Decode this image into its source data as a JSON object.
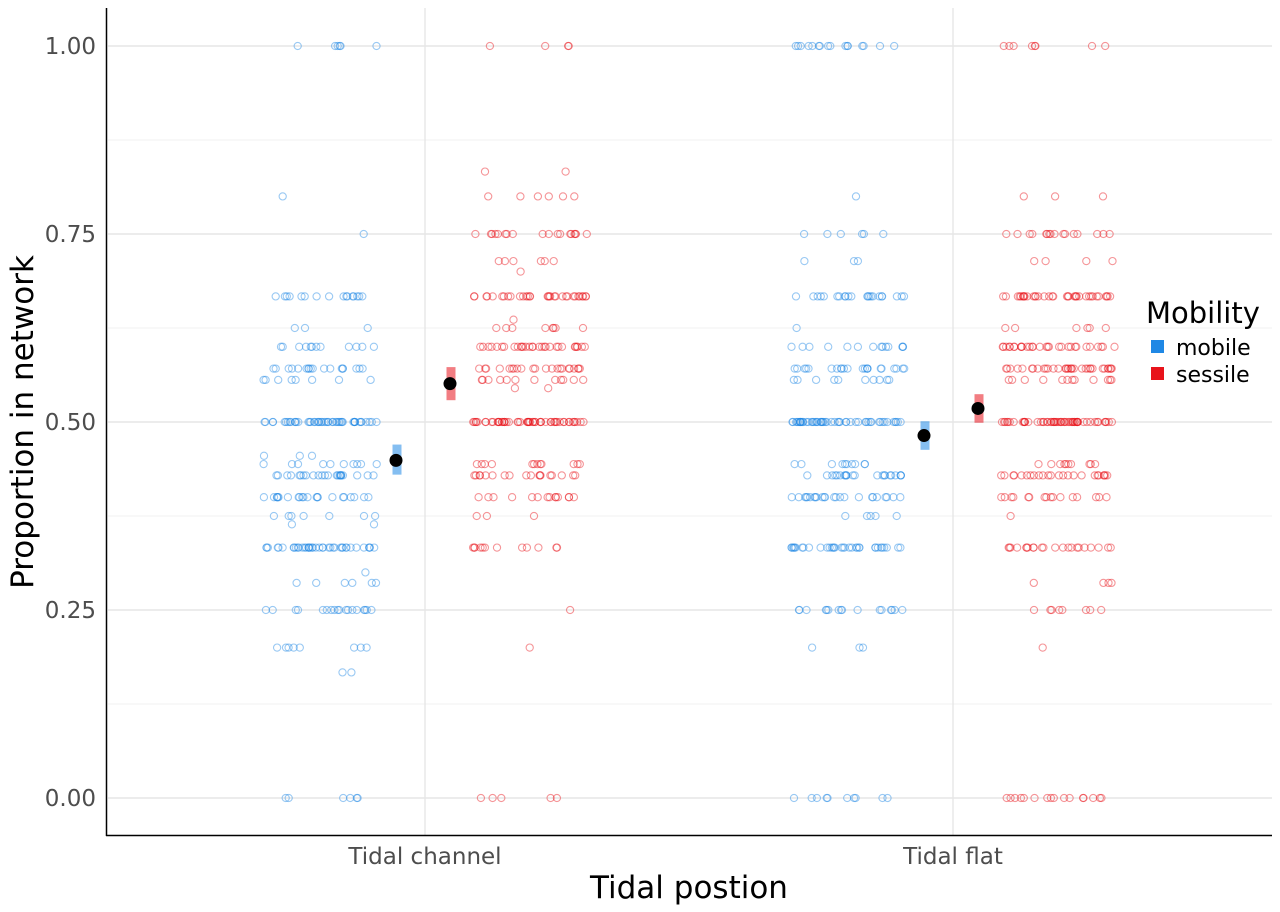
{
  "chart_data": {
    "type": "scatter",
    "title": "",
    "xlabel": "Tidal postion",
    "ylabel": "Proportion in network",
    "categories": [
      "Tidal channel",
      "Tidal flat"
    ],
    "ylim": [
      0,
      1
    ],
    "yticks": [
      "0.00",
      "0.25",
      "0.50",
      "0.75",
      "1.00"
    ],
    "ytick_values": [
      0,
      0.25,
      0.5,
      0.75,
      1.0
    ],
    "grid": true,
    "legend": {
      "title": "Mobility",
      "position": "right",
      "entries": [
        {
          "label": "mobile",
          "color": "#1f88e5"
        },
        {
          "label": "sessile",
          "color": "#e8131b"
        }
      ]
    },
    "series": [
      {
        "name": "mobile",
        "color": "#1f88e5",
        "points": {
          "Tidal channel": [
            {
              "y": 1.0,
              "n": 6
            },
            {
              "y": 0.8,
              "n": 1
            },
            {
              "y": 0.75,
              "n": 1
            },
            {
              "y": 0.667,
              "n": 16
            },
            {
              "y": 0.625,
              "n": 3
            },
            {
              "y": 0.6,
              "n": 12
            },
            {
              "y": 0.571,
              "n": 18
            },
            {
              "y": 0.556,
              "n": 8
            },
            {
              "y": 0.5,
              "n": 48
            },
            {
              "y": 0.455,
              "n": 3
            },
            {
              "y": 0.444,
              "n": 10
            },
            {
              "y": 0.429,
              "n": 24
            },
            {
              "y": 0.4,
              "n": 22
            },
            {
              "y": 0.375,
              "n": 7
            },
            {
              "y": 0.364,
              "n": 2
            },
            {
              "y": 0.333,
              "n": 40
            },
            {
              "y": 0.3,
              "n": 1
            },
            {
              "y": 0.286,
              "n": 6
            },
            {
              "y": 0.25,
              "n": 18
            },
            {
              "y": 0.2,
              "n": 8
            },
            {
              "y": 0.167,
              "n": 2
            },
            {
              "y": 0.0,
              "n": 6
            }
          ],
          "Tidal flat": [
            {
              "y": 1.0,
              "n": 16
            },
            {
              "y": 0.8,
              "n": 1
            },
            {
              "y": 0.75,
              "n": 6
            },
            {
              "y": 0.714,
              "n": 3
            },
            {
              "y": 0.667,
              "n": 22
            },
            {
              "y": 0.625,
              "n": 1
            },
            {
              "y": 0.6,
              "n": 14
            },
            {
              "y": 0.571,
              "n": 22
            },
            {
              "y": 0.556,
              "n": 10
            },
            {
              "y": 0.5,
              "n": 52
            },
            {
              "y": 0.444,
              "n": 10
            },
            {
              "y": 0.429,
              "n": 22
            },
            {
              "y": 0.4,
              "n": 24
            },
            {
              "y": 0.375,
              "n": 5
            },
            {
              "y": 0.333,
              "n": 34
            },
            {
              "y": 0.25,
              "n": 16
            },
            {
              "y": 0.2,
              "n": 3
            },
            {
              "y": 0.0,
              "n": 10
            }
          ]
        },
        "mean": {
          "Tidal channel": 0.449,
          "Tidal flat": 0.482
        },
        "ci": {
          "Tidal channel": [
            0.43,
            0.47
          ],
          "Tidal flat": [
            0.463,
            0.501
          ]
        }
      },
      {
        "name": "sessile",
        "color": "#e8131b",
        "points": {
          "Tidal channel": [
            {
              "y": 1.0,
              "n": 4
            },
            {
              "y": 0.833,
              "n": 2
            },
            {
              "y": 0.8,
              "n": 6
            },
            {
              "y": 0.75,
              "n": 18
            },
            {
              "y": 0.714,
              "n": 6
            },
            {
              "y": 0.7,
              "n": 1
            },
            {
              "y": 0.667,
              "n": 32
            },
            {
              "y": 0.636,
              "n": 1
            },
            {
              "y": 0.625,
              "n": 8
            },
            {
              "y": 0.6,
              "n": 30
            },
            {
              "y": 0.571,
              "n": 22
            },
            {
              "y": 0.556,
              "n": 12
            },
            {
              "y": 0.545,
              "n": 2
            },
            {
              "y": 0.5,
              "n": 54
            },
            {
              "y": 0.444,
              "n": 12
            },
            {
              "y": 0.429,
              "n": 18
            },
            {
              "y": 0.4,
              "n": 14
            },
            {
              "y": 0.375,
              "n": 3
            },
            {
              "y": 0.333,
              "n": 12
            },
            {
              "y": 0.25,
              "n": 1
            },
            {
              "y": 0.2,
              "n": 1
            },
            {
              "y": 0.0,
              "n": 5
            }
          ],
          "Tidal flat": [
            {
              "y": 1.0,
              "n": 8
            },
            {
              "y": 0.8,
              "n": 3
            },
            {
              "y": 0.75,
              "n": 16
            },
            {
              "y": 0.714,
              "n": 4
            },
            {
              "y": 0.667,
              "n": 36
            },
            {
              "y": 0.625,
              "n": 6
            },
            {
              "y": 0.6,
              "n": 30
            },
            {
              "y": 0.571,
              "n": 34
            },
            {
              "y": 0.556,
              "n": 12
            },
            {
              "y": 0.5,
              "n": 56
            },
            {
              "y": 0.444,
              "n": 10
            },
            {
              "y": 0.429,
              "n": 24
            },
            {
              "y": 0.4,
              "n": 16
            },
            {
              "y": 0.375,
              "n": 1
            },
            {
              "y": 0.333,
              "n": 22
            },
            {
              "y": 0.286,
              "n": 4
            },
            {
              "y": 0.25,
              "n": 8
            },
            {
              "y": 0.2,
              "n": 1
            },
            {
              "y": 0.0,
              "n": 16
            }
          ]
        },
        "mean": {
          "Tidal channel": 0.551,
          "Tidal flat": 0.518
        },
        "ci": {
          "Tidal channel": [
            0.529,
            0.573
          ],
          "Tidal flat": [
            0.499,
            0.537
          ]
        }
      }
    ]
  }
}
